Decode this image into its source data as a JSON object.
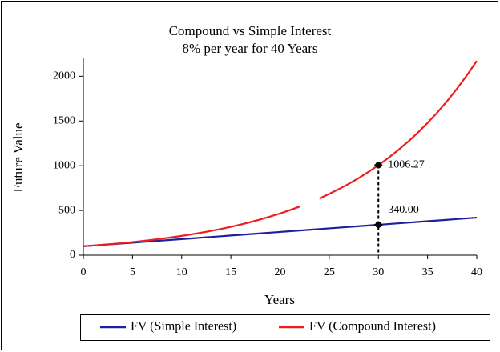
{
  "chart_data": {
    "type": "line",
    "title": "Compound vs Simple Interest",
    "subtitle": "8% per year for 40 Years",
    "x_label": "Years",
    "y_label": "Future Value",
    "x": [
      0,
      1,
      2,
      3,
      4,
      5,
      6,
      7,
      8,
      9,
      10,
      11,
      12,
      13,
      14,
      15,
      16,
      17,
      18,
      19,
      20,
      21,
      22,
      23,
      24,
      25,
      26,
      27,
      28,
      29,
      30,
      31,
      32,
      33,
      34,
      35,
      36,
      37,
      38,
      39,
      40
    ],
    "series": [
      {
        "name": "FV (Simple Interest)",
        "color": "#1f1f9e",
        "values": [
          100,
          108,
          116,
          124,
          132,
          140,
          148,
          156,
          164,
          172,
          180,
          188,
          196,
          204,
          212,
          220,
          228,
          236,
          244,
          252,
          260,
          268,
          276,
          284,
          292,
          300,
          308,
          316,
          324,
          332,
          340,
          348,
          356,
          364,
          372,
          380,
          388,
          396,
          404,
          412,
          420
        ]
      },
      {
        "name": "FV (Compound Interest)",
        "color": "#ee1c1c",
        "values": [
          100,
          108,
          116.64,
          125.97,
          136.05,
          146.93,
          158.69,
          171.38,
          185.09,
          199.9,
          215.89,
          233.16,
          251.82,
          271.96,
          293.72,
          317.22,
          342.59,
          370,
          399.6,
          431.57,
          466.1,
          503.38,
          543.65,
          null,
          634.11,
          684.85,
          739.63,
          798.8,
          862.71,
          931.73,
          1006.27,
          1086.77,
          1173.71,
          1267.61,
          1369.02,
          1478.54,
          1596.82,
          1724.57,
          1862.53,
          2011.53,
          2172.45
        ]
      }
    ],
    "annotations": [
      {
        "x": 30,
        "y": 1006.27,
        "label": "1006.27"
      },
      {
        "x": 30,
        "y": 340,
        "label": "340.00"
      }
    ],
    "xlim": [
      0,
      40
    ],
    "xticks": [
      0,
      5,
      10,
      15,
      20,
      25,
      30,
      35,
      40
    ],
    "ylim": [
      0,
      2200
    ],
    "yticks": [
      0,
      500,
      1000,
      1500,
      2000
    ],
    "legend": "bottom"
  }
}
